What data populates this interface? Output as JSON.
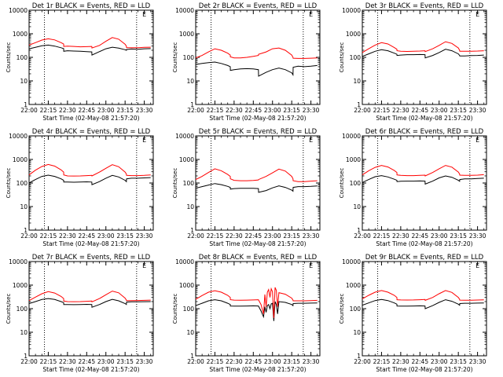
{
  "figure": {
    "xlabel": "Start Time (02-May-08 21:57:20)",
    "ylabel": "Counts/sec",
    "x_tick_labels": [
      "22:00",
      "22:15",
      "22:30",
      "22:45",
      "23:00",
      "23:15",
      "23:30"
    ],
    "x_tick_minutes": [
      0,
      15,
      30,
      45,
      60,
      75,
      90
    ],
    "x_range_minutes": [
      0,
      97
    ],
    "dotted_lines_minutes": [
      12,
      84
    ],
    "y_tick_labels": [
      "1",
      "10",
      "100",
      "1000",
      "10000"
    ],
    "y_tick_values": [
      1,
      10,
      100,
      1000,
      10000
    ],
    "ylim": [
      1,
      10000
    ],
    "y_scale": "log"
  },
  "colors": {
    "events": "#000000",
    "lld": "#ff0000",
    "dotted": "#000000"
  },
  "chart_data": [
    {
      "type": "line",
      "title": "Det 1r BLACK = Events, RED = LLD",
      "marker_label": "E",
      "marker_minute": 90,
      "x": [
        0,
        5,
        10,
        15,
        20,
        25,
        27,
        27.1,
        30,
        35,
        40,
        45,
        49,
        49.1,
        55,
        60,
        65,
        70,
        75,
        76,
        76.1,
        80,
        85,
        90,
        95
      ],
      "series": [
        {
          "name": "Events",
          "values": [
            230,
            265,
            310,
            330,
            300,
            255,
            235,
            180,
            190,
            185,
            180,
            175,
            170,
            125,
            175,
            230,
            270,
            245,
            210,
            200,
            215,
            225,
            220,
            230,
            235
          ]
        },
        {
          "name": "LLD",
          "values": [
            330,
            420,
            540,
            610,
            550,
            420,
            370,
            290,
            300,
            290,
            280,
            285,
            290,
            250,
            320,
            480,
            690,
            590,
            360,
            300,
            260,
            255,
            255,
            265,
            270
          ]
        }
      ]
    },
    {
      "type": "line",
      "title": "Det 2r BLACK = Events, RED = LLD",
      "marker_label": "E",
      "marker_minute": 90,
      "x": [
        0,
        5,
        10,
        15,
        20,
        25,
        27,
        27.1,
        30,
        35,
        40,
        45,
        49,
        49.1,
        55,
        60,
        65,
        70,
        75,
        76,
        76.1,
        80,
        85,
        90,
        95
      ],
      "series": [
        {
          "name": "Events",
          "values": [
            50,
            55,
            60,
            63,
            55,
            45,
            40,
            28,
            30,
            32,
            33,
            32,
            30,
            16,
            23,
            30,
            35,
            30,
            22,
            18,
            38,
            42,
            40,
            42,
            45
          ]
        },
        {
          "name": "LLD",
          "values": [
            95,
            120,
            170,
            230,
            200,
            150,
            125,
            105,
            95,
            95,
            100,
            110,
            120,
            135,
            170,
            230,
            250,
            200,
            125,
            100,
            92,
            90,
            90,
            92,
            95
          ]
        }
      ]
    },
    {
      "type": "line",
      "title": "Det 3r BLACK = Events, RED = LLD",
      "marker_label": "E",
      "marker_minute": 90,
      "x": [
        0,
        5,
        10,
        15,
        20,
        25,
        27,
        27.1,
        30,
        35,
        40,
        45,
        49,
        49.1,
        55,
        60,
        65,
        70,
        75,
        76,
        76.1,
        80,
        85,
        90,
        95
      ],
      "series": [
        {
          "name": "Events",
          "values": [
            110,
            140,
            180,
            210,
            190,
            150,
            135,
            120,
            125,
            130,
            130,
            132,
            130,
            95,
            120,
            160,
            220,
            190,
            140,
            120,
            115,
            115,
            118,
            120,
            125
          ]
        },
        {
          "name": "LLD",
          "values": [
            160,
            230,
            330,
            420,
            370,
            260,
            220,
            190,
            180,
            178,
            180,
            185,
            190,
            175,
            230,
            320,
            460,
            390,
            250,
            200,
            180,
            180,
            182,
            185,
            190
          ]
        }
      ]
    },
    {
      "type": "line",
      "title": "Det 4r BLACK = Events, RED = LLD",
      "marker_label": "E",
      "marker_minute": 90,
      "x": [
        0,
        5,
        10,
        15,
        20,
        25,
        27,
        27.1,
        30,
        35,
        40,
        45,
        49,
        49.1,
        55,
        60,
        65,
        70,
        75,
        76,
        76.1,
        80,
        85,
        90,
        95
      ],
      "series": [
        {
          "name": "Events",
          "values": [
            100,
            140,
            190,
            215,
            190,
            150,
            130,
            110,
            110,
            108,
            110,
            112,
            110,
            85,
            115,
            160,
            210,
            180,
            130,
            115,
            150,
            160,
            160,
            165,
            170
          ]
        },
        {
          "name": "LLD",
          "values": [
            220,
            350,
            500,
            610,
            520,
            360,
            290,
            220,
            200,
            198,
            200,
            205,
            210,
            200,
            290,
            420,
            600,
            490,
            290,
            240,
            210,
            205,
            205,
            210,
            220
          ]
        }
      ]
    },
    {
      "type": "line",
      "title": "Det 5r BLACK = Events, RED = LLD",
      "marker_label": "E",
      "marker_minute": 90,
      "x": [
        0,
        5,
        10,
        15,
        20,
        25,
        27,
        27.1,
        30,
        35,
        40,
        45,
        49,
        49.1,
        55,
        60,
        65,
        70,
        75,
        76,
        76.1,
        80,
        85,
        90,
        95
      ],
      "series": [
        {
          "name": "Events",
          "values": [
            60,
            70,
            82,
            95,
            85,
            72,
            65,
            55,
            58,
            60,
            60,
            60,
            58,
            40,
            48,
            62,
            75,
            65,
            50,
            45,
            65,
            70,
            70,
            72,
            75
          ]
        },
        {
          "name": "LLD",
          "values": [
            140,
            190,
            280,
            400,
            330,
            230,
            190,
            150,
            130,
            125,
            125,
            128,
            135,
            140,
            190,
            270,
            390,
            320,
            190,
            150,
            125,
            115,
            115,
            120,
            125
          ]
        }
      ]
    },
    {
      "type": "line",
      "title": "Det 6r BLACK = Events, RED = LLD",
      "marker_label": "E",
      "marker_minute": 90,
      "x": [
        0,
        5,
        10,
        15,
        20,
        25,
        27,
        27.1,
        30,
        35,
        40,
        45,
        49,
        49.1,
        55,
        60,
        65,
        70,
        75,
        76,
        76.1,
        80,
        85,
        90,
        95
      ],
      "series": [
        {
          "name": "Events",
          "values": [
            105,
            140,
            185,
            205,
            180,
            145,
            130,
            115,
            118,
            120,
            120,
            122,
            120,
            90,
            120,
            165,
            200,
            175,
            130,
            118,
            140,
            150,
            150,
            155,
            160
          ]
        },
        {
          "name": "LLD",
          "values": [
            220,
            330,
            460,
            560,
            480,
            340,
            280,
            220,
            210,
            205,
            205,
            210,
            215,
            200,
            280,
            400,
            560,
            470,
            290,
            240,
            215,
            210,
            210,
            215,
            225
          ]
        }
      ]
    },
    {
      "type": "line",
      "title": "Det 7r BLACK = Events, RED = LLD",
      "marker_label": "E",
      "marker_minute": 90,
      "x": [
        0,
        5,
        10,
        15,
        20,
        25,
        27,
        27.1,
        30,
        35,
        40,
        45,
        49,
        49.1,
        55,
        60,
        65,
        70,
        75,
        76,
        76.1,
        80,
        85,
        90,
        95
      ],
      "series": [
        {
          "name": "Events",
          "values": [
            165,
            200,
            245,
            270,
            245,
            200,
            180,
            150,
            150,
            148,
            150,
            152,
            150,
            115,
            150,
            200,
            250,
            215,
            165,
            150,
            190,
            195,
            195,
            198,
            200
          ]
        },
        {
          "name": "LLD",
          "values": [
            220,
            310,
            430,
            530,
            460,
            330,
            270,
            210,
            200,
            198,
            200,
            205,
            210,
            195,
            270,
            390,
            560,
            470,
            280,
            230,
            220,
            220,
            222,
            225,
            230
          ]
        }
      ]
    },
    {
      "type": "line",
      "title": "Det 8r BLACK = Events, RED = LLD",
      "marker_label": "E",
      "marker_minute": 90,
      "x": [
        0,
        5,
        10,
        15,
        20,
        25,
        27,
        27.1,
        30,
        35,
        40,
        45,
        49,
        51,
        53,
        54,
        55,
        56,
        57,
        58,
        59,
        60,
        61,
        62,
        63,
        64,
        65,
        70,
        75,
        76,
        76.1,
        80,
        85,
        90,
        95
      ],
      "series": [
        {
          "name": "Events",
          "values": [
            135,
            170,
            215,
            240,
            215,
            170,
            150,
            130,
            128,
            128,
            130,
            132,
            130,
            80,
            45,
            120,
            70,
            135,
            150,
            100,
            160,
            170,
            30,
            200,
            150,
            60,
            200,
            185,
            150,
            135,
            165,
            170,
            170,
            172,
            175
          ]
        },
        {
          "name": "LLD",
          "values": [
            250,
            360,
            500,
            580,
            500,
            370,
            300,
            240,
            230,
            228,
            230,
            235,
            240,
            150,
            60,
            400,
            120,
            500,
            650,
            300,
            700,
            520,
            40,
            800,
            600,
            120,
            480,
            410,
            280,
            230,
            215,
            215,
            215,
            220,
            225
          ]
        }
      ]
    },
    {
      "type": "line",
      "title": "Det 9r BLACK = Events, RED = LLD",
      "marker_label": "E",
      "marker_minute": 90,
      "x": [
        0,
        5,
        10,
        15,
        20,
        25,
        27,
        27.1,
        30,
        35,
        40,
        45,
        49,
        49.1,
        55,
        60,
        65,
        70,
        75,
        76,
        76.1,
        80,
        85,
        90,
        95
      ],
      "series": [
        {
          "name": "Events",
          "values": [
            140,
            175,
            220,
            245,
            220,
            175,
            155,
            130,
            128,
            128,
            130,
            132,
            130,
            100,
            135,
            185,
            240,
            205,
            155,
            140,
            165,
            170,
            170,
            172,
            175
          ]
        },
        {
          "name": "LLD",
          "values": [
            260,
            370,
            500,
            590,
            500,
            370,
            300,
            240,
            235,
            232,
            235,
            240,
            245,
            225,
            300,
            430,
            590,
            490,
            300,
            250,
            230,
            228,
            228,
            232,
            238
          ]
        }
      ]
    }
  ]
}
